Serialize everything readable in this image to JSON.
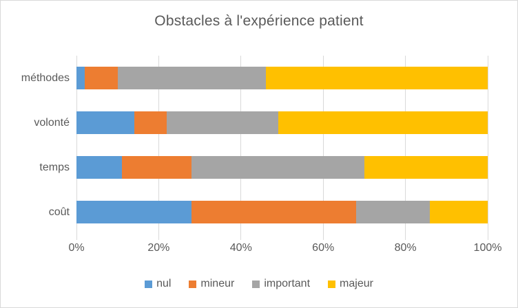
{
  "chart_data": {
    "type": "bar",
    "orientation": "horizontal",
    "stacked": true,
    "stacked_100_percent": true,
    "title": "Obstacles à l'expérience patient",
    "categories": [
      "méthodes",
      "volonté",
      "temps",
      "coût"
    ],
    "series": [
      {
        "name": "nul",
        "color": "#5B9BD5",
        "values": [
          2,
          14,
          11,
          28
        ]
      },
      {
        "name": "mineur",
        "color": "#ED7D31",
        "values": [
          8,
          8,
          17,
          40
        ]
      },
      {
        "name": "important",
        "color": "#A5A5A5",
        "values": [
          36,
          27,
          42,
          18
        ]
      },
      {
        "name": "majeur",
        "color": "#FFC000",
        "values": [
          54,
          51,
          30,
          14
        ]
      }
    ],
    "xlabel": "",
    "ylabel": "",
    "xlim": [
      0,
      100
    ],
    "x_ticks": [
      "0%",
      "20%",
      "40%",
      "60%",
      "80%",
      "100%"
    ],
    "x_tick_values": [
      0,
      20,
      40,
      60,
      80,
      100
    ],
    "grid": "vertical",
    "gridline_color": "#D9D9D9",
    "text_color": "#595959",
    "legend_position": "bottom",
    "legend_labels": [
      "nul",
      "mineur",
      "important",
      "majeur"
    ]
  }
}
